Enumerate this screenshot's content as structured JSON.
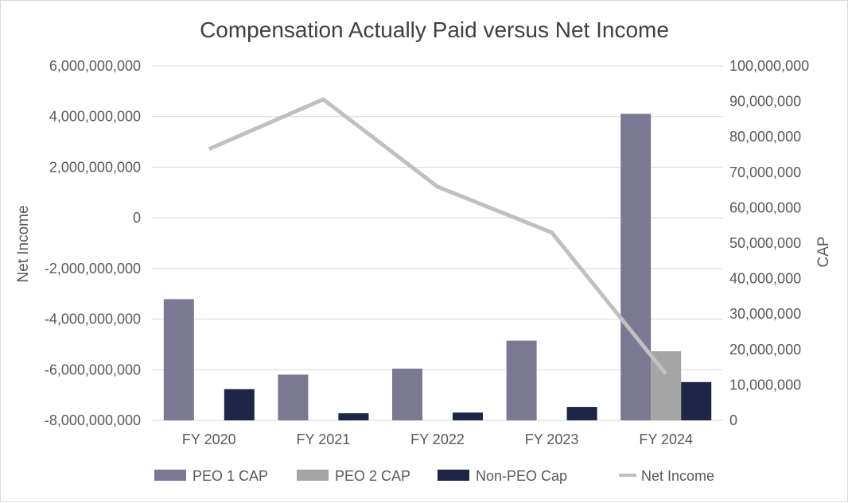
{
  "chart_data": {
    "type": "bar",
    "title": "Compensation Actually Paid versus Net Income",
    "categories": [
      "FY 2020",
      "FY 2021",
      "FY 2022",
      "FY 2023",
      "FY 2024"
    ],
    "y_left": {
      "label": "Net Income",
      "range": [
        -8000000000,
        6000000000
      ],
      "ticks": [
        "6,000,000,000",
        "4,000,000,000",
        "2,000,000,000",
        "0",
        "-2,000,000,000",
        "-4,000,000,000",
        "-6,000,000,000",
        "-8,000,000,000"
      ]
    },
    "y_right": {
      "label": "CAP",
      "range": [
        0,
        100000000
      ],
      "ticks": [
        "100,000,000",
        "90,000,000",
        "80,000,000",
        "70,000,000",
        "60,000,000",
        "50,000,000",
        "40,000,000",
        "30,000,000",
        "20,000,000",
        "10,000,000",
        "0"
      ]
    },
    "series": [
      {
        "name": "PEO 1 CAP",
        "type": "bar",
        "axis": "right",
        "color": "#7a7893",
        "values": [
          34200000,
          12900000,
          14600000,
          22500000,
          86500000
        ]
      },
      {
        "name": "PEO 2 CAP",
        "type": "bar",
        "axis": "right",
        "color": "#a5a5a5",
        "values": [
          null,
          null,
          null,
          null,
          19500000
        ]
      },
      {
        "name": "Non-PEO Cap",
        "type": "bar",
        "axis": "right",
        "color": "#1f2547",
        "values": [
          8800000,
          2000000,
          2200000,
          3800000,
          10800000
        ]
      },
      {
        "name": "Net Income",
        "type": "line",
        "axis": "left",
        "color": "#c0c0c0",
        "values": [
          2720000000,
          4680000000,
          1230000000,
          -580000000,
          -6170000000
        ]
      }
    ],
    "grid": true,
    "legend_position": "bottom"
  }
}
